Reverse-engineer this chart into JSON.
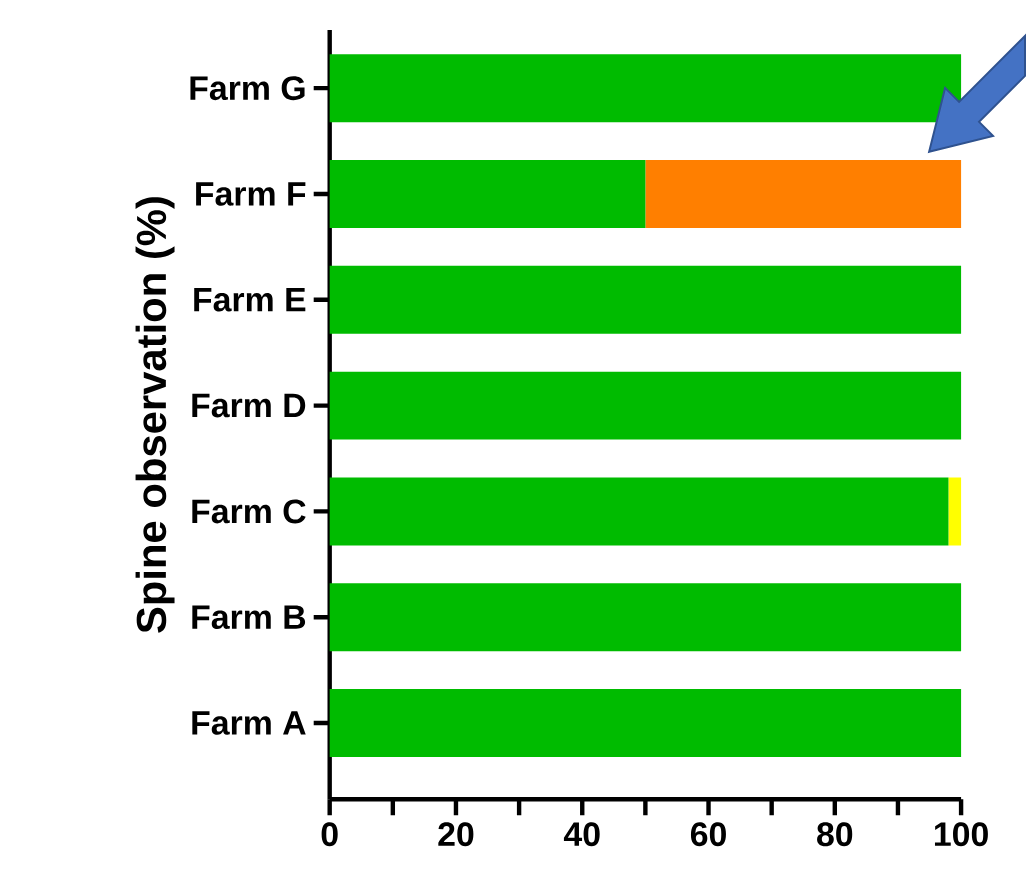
{
  "chart_data": {
    "type": "bar",
    "orientation": "horizontal",
    "stacked": true,
    "ylabel": "Spine observation (%)",
    "categories": [
      "Farm G",
      "Farm F",
      "Farm E",
      "Farm D",
      "Farm C",
      "Farm B",
      "Farm A"
    ],
    "series": [
      {
        "color": "#00bb00",
        "values": [
          100,
          50,
          100,
          100,
          98,
          100,
          100
        ]
      },
      {
        "color": "#ff7f00",
        "values": [
          0,
          50,
          0,
          0,
          0,
          0,
          0
        ]
      },
      {
        "color": "#ffff00",
        "values": [
          0,
          0,
          0,
          0,
          2,
          0,
          0
        ]
      }
    ],
    "xlim": [
      0,
      100
    ],
    "xticks": [
      0,
      {
        "value": 10,
        "label": null
      },
      20,
      {
        "value": 30,
        "label": null
      },
      40,
      {
        "value": 50,
        "label": null
      },
      60,
      {
        "value": 70,
        "label": null
      },
      80,
      {
        "value": 90,
        "label": null
      },
      100
    ],
    "grid": false
  }
}
